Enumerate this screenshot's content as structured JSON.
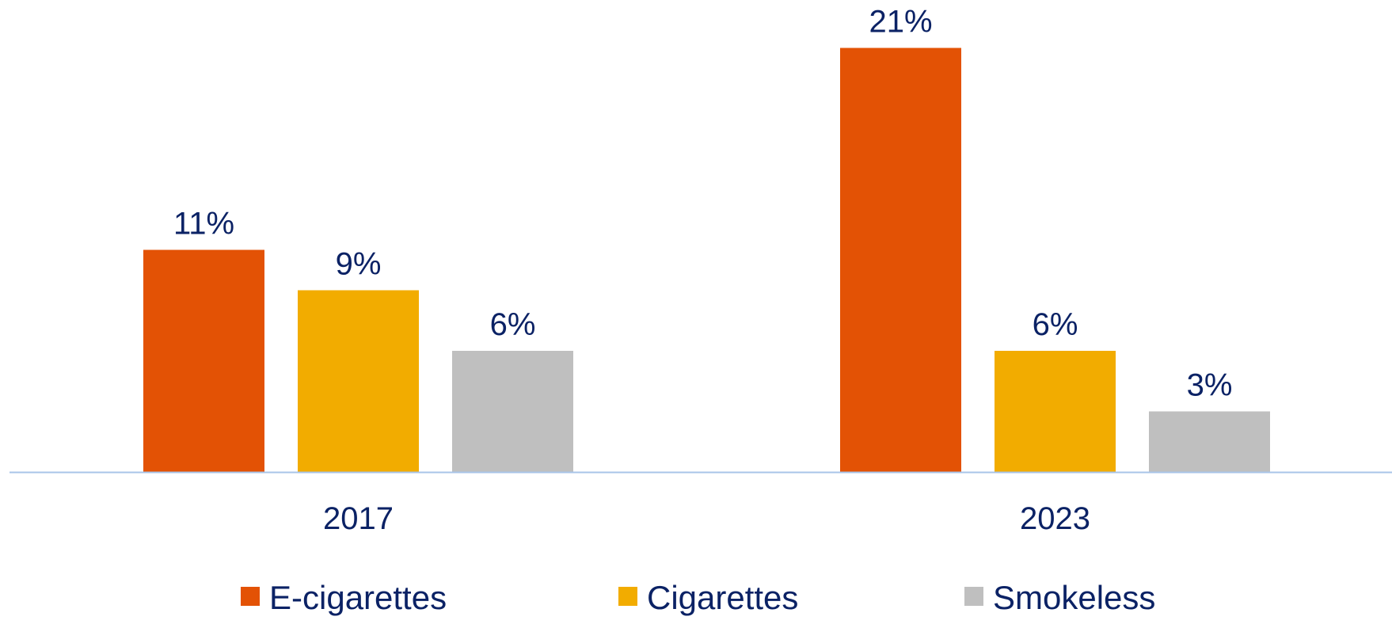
{
  "chart_data": {
    "type": "bar",
    "categories": [
      "2017",
      "2023"
    ],
    "series": [
      {
        "name": "E-cigarettes",
        "values": [
          11,
          21
        ],
        "labels": [
          "11%",
          "21%"
        ],
        "color": "#E35205"
      },
      {
        "name": "Cigarettes",
        "values": [
          9,
          6
        ],
        "labels": [
          "9%",
          "6%"
        ],
        "color": "#F2AC00"
      },
      {
        "name": "Smokeless",
        "values": [
          6,
          3
        ],
        "labels": [
          "6%",
          "3%"
        ],
        "color": "#BFBFBF"
      }
    ],
    "title": "",
    "xlabel": "",
    "ylabel": "",
    "ylim": [
      0,
      21
    ],
    "grid": false,
    "legend_position": "bottom",
    "text_color": "#0B2265",
    "axis_color": "#A9C4E8"
  }
}
